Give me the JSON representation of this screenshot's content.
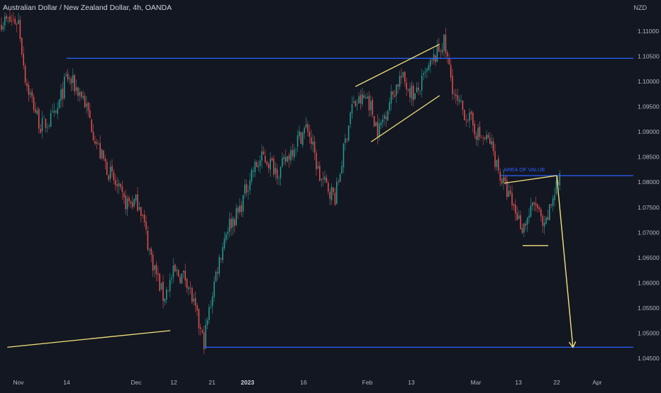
{
  "header": {
    "symbol_title": "Australian Dollar / New Zealand Dollar, 4h, OANDA",
    "currency": "NZD"
  },
  "colors": {
    "background": "#131722",
    "candle_up": "#26a69a",
    "candle_down": "#ef5350",
    "level_line": "#2962ff",
    "trend_line": "#f2e27a",
    "axis_text": "#b2b5be"
  },
  "annotations": {
    "area_of_value": "AREA OF VALUE"
  },
  "chart_data": {
    "type": "candlestick",
    "ylim": [
      1.0445,
      1.1125
    ],
    "y_ticks": [
      "1.11000",
      "1.10500",
      "1.10000",
      "1.09500",
      "1.09000",
      "1.08500",
      "1.08000",
      "1.07500",
      "1.07000",
      "1.06500",
      "1.06000",
      "1.05500",
      "1.05000",
      "1.04500"
    ],
    "x_ticks": [
      "Nov",
      "14",
      "Dec",
      "12",
      "21",
      "2023",
      "16",
      "Feb",
      "13",
      "Mar",
      "13",
      "22",
      "Apr"
    ],
    "price_path": [
      {
        "x": "Nov 1",
        "y": 1.112
      },
      {
        "x": "Nov 3",
        "y": 1.1
      },
      {
        "x": "Nov 7",
        "y": 1.091
      },
      {
        "x": "Nov 11",
        "y": 1.093
      },
      {
        "x": "Nov 14",
        "y": 1.101
      },
      {
        "x": "Nov 18",
        "y": 1.097
      },
      {
        "x": "Nov 22",
        "y": 1.086
      },
      {
        "x": "Nov 28",
        "y": 1.076
      },
      {
        "x": "Dec 2",
        "y": 1.076
      },
      {
        "x": "Dec 5",
        "y": 1.066
      },
      {
        "x": "Dec 9",
        "y": 1.057
      },
      {
        "x": "Dec 12",
        "y": 1.062
      },
      {
        "x": "Dec 15",
        "y": 1.061
      },
      {
        "x": "Dec 19",
        "y": 1.048
      },
      {
        "x": "Dec 22",
        "y": 1.061
      },
      {
        "x": "Dec 26",
        "y": 1.071
      },
      {
        "x": "Dec 30",
        "y": 1.074
      },
      {
        "x": "Jan 3",
        "y": 1.082
      },
      {
        "x": "Jan 6",
        "y": 1.085
      },
      {
        "x": "Jan 10",
        "y": 1.082
      },
      {
        "x": "Jan 14",
        "y": 1.088
      },
      {
        "x": "Jan 17",
        "y": 1.091
      },
      {
        "x": "Jan 20",
        "y": 1.081
      },
      {
        "x": "Jan 24",
        "y": 1.077
      },
      {
        "x": "Jan 28",
        "y": 1.095
      },
      {
        "x": "Feb 1",
        "y": 1.097
      },
      {
        "x": "Feb 4",
        "y": 1.09
      },
      {
        "x": "Feb 7",
        "y": 1.096
      },
      {
        "x": "Feb 10",
        "y": 1.101
      },
      {
        "x": "Feb 14",
        "y": 1.097
      },
      {
        "x": "Feb 17",
        "y": 1.102
      },
      {
        "x": "Feb 21",
        "y": 1.108
      },
      {
        "x": "Feb 24",
        "y": 1.096
      },
      {
        "x": "Feb 27",
        "y": 1.093
      },
      {
        "x": "Mar 2",
        "y": 1.089
      },
      {
        "x": "Mar 5",
        "y": 1.088
      },
      {
        "x": "Mar 8",
        "y": 1.081
      },
      {
        "x": "Mar 11",
        "y": 1.076
      },
      {
        "x": "Mar 14",
        "y": 1.071
      },
      {
        "x": "Mar 17",
        "y": 1.076
      },
      {
        "x": "Mar 19",
        "y": 1.07
      },
      {
        "x": "Mar 22",
        "y": 1.08
      }
    ],
    "horizontal_levels": [
      {
        "y": 1.1046,
        "from": "Nov 14",
        "to": "end"
      },
      {
        "y": 1.0813,
        "from": "Mar 8",
        "to": "end"
      },
      {
        "y": 1.0472,
        "from": "Dec 19",
        "to": "end"
      }
    ],
    "trend_lines": [
      {
        "from": {
          "x": "Oct 29",
          "y": 1.0472
        },
        "to": {
          "x": "Dec 11",
          "y": 1.0505
        }
      },
      {
        "from": {
          "x": "Jan 29",
          "y": 1.099
        },
        "to": {
          "x": "Feb 20",
          "y": 1.1074
        }
      },
      {
        "from": {
          "x": "Feb 2",
          "y": 1.088
        },
        "to": {
          "x": "Feb 20",
          "y": 1.0972
        }
      },
      {
        "from": {
          "x": "Mar 9",
          "y": 1.0798
        },
        "to": {
          "x": "Mar 22",
          "y": 1.0813
        }
      },
      {
        "from": {
          "x": "Mar 14",
          "y": 1.0674
        },
        "to": {
          "x": "Mar 20",
          "y": 1.0674
        }
      }
    ],
    "projection_arrow": {
      "from": {
        "x": "Mar 22",
        "y": 1.0813
      },
      "to": {
        "x": "Mar 26",
        "y": 1.0472
      }
    }
  }
}
